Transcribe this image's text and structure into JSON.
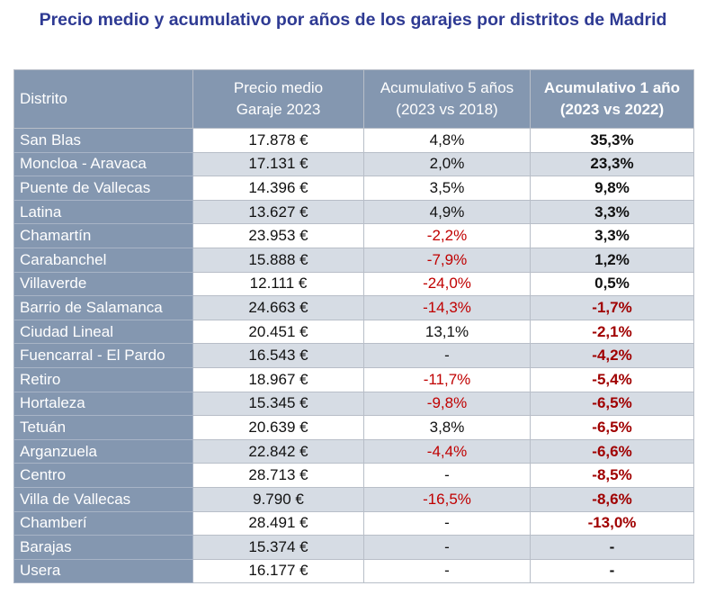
{
  "title": "Precio medio y acumulativo por años de los garajes por distritos de Madrid",
  "headers": [
    "Distrito",
    "Precio medio\nGaraje 2023",
    "Acumulativo 5 años\n(2023 vs 2018)",
    "Acumulativo 1 año\n(2023 vs 2022)"
  ],
  "negative_color": "#c00000",
  "header_color": "#8497b0",
  "rows": [
    [
      "San Blas",
      "17.878 €",
      "4,8%",
      "35,3%"
    ],
    [
      "Moncloa - Aravaca",
      "17.131 €",
      "2,0%",
      "23,3%"
    ],
    [
      "Puente de Vallecas",
      "14.396 €",
      "3,5%",
      "9,8%"
    ],
    [
      "Latina",
      "13.627 €",
      "4,9%",
      "3,3%"
    ],
    [
      "Chamartín",
      "23.953 €",
      "-2,2%",
      "3,3%"
    ],
    [
      "Carabanchel",
      "15.888 €",
      "-7,9%",
      "1,2%"
    ],
    [
      "Villaverde",
      "12.111 €",
      "-24,0%",
      "0,5%"
    ],
    [
      "Barrio de Salamanca",
      "24.663 €",
      "-14,3%",
      "-1,7%"
    ],
    [
      "Ciudad Lineal",
      "20.451 €",
      "13,1%",
      "-2,1%"
    ],
    [
      "Fuencarral - El Pardo",
      "16.543 €",
      "-",
      "-4,2%"
    ],
    [
      "Retiro",
      "18.967 €",
      "-11,7%",
      "-5,4%"
    ],
    [
      "Hortaleza",
      "15.345 €",
      "-9,8%",
      "-6,5%"
    ],
    [
      "Tetuán",
      "20.639 €",
      "3,8%",
      "-6,5%"
    ],
    [
      "Arganzuela",
      "22.842 €",
      "-4,4%",
      "-6,6%"
    ],
    [
      "Centro",
      "28.713 €",
      "-",
      "-8,5%"
    ],
    [
      "Villa de Vallecas",
      "9.790 €",
      "-16,5%",
      "-8,6%"
    ],
    [
      "Chamberí",
      "28.491 €",
      "-",
      "-13,0%"
    ],
    [
      "Barajas",
      "15.374 €",
      "-",
      "-"
    ],
    [
      "Usera",
      "16.177 €",
      "-",
      "-"
    ]
  ]
}
